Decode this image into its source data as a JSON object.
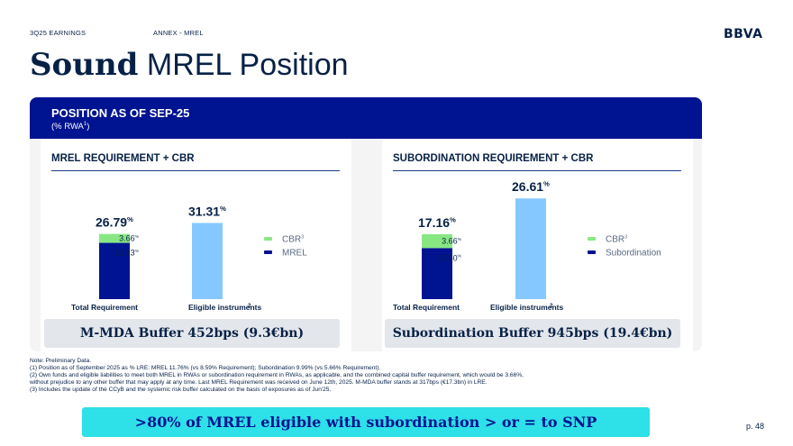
{
  "header": {
    "left": "3Q25 EARNINGS",
    "middle": "ANNEX - MREL",
    "logo": "BBVA"
  },
  "title": {
    "bold": "Sound",
    "rest": "MREL Position"
  },
  "panel": {
    "title": "POSITION AS OF SEP-25",
    "subtitle": "(% RWA",
    "subtitle_sup": "1",
    "subtitle_close": ")"
  },
  "sections": {
    "left": {
      "title": "MREL REQUIREMENT + CBR",
      "buffer": "M-MDA Buffer 452bps (9.3€bn)"
    },
    "right": {
      "title": "SUBORDINATION REQUIREMENT + CBR",
      "buffer": "Subordination Buffer 945bps (19.4€bn)"
    }
  },
  "chart_data": [
    {
      "type": "bar",
      "categories": [
        "Total Requirement",
        "Eligible instruments"
      ],
      "category_sup": [
        "",
        "2"
      ],
      "series": [
        {
          "name": "MREL",
          "values": [
            23.13,
            null
          ]
        },
        {
          "name": "CBR",
          "legend_sup": "3",
          "values": [
            3.66,
            null
          ]
        },
        {
          "name": "",
          "values": [
            null,
            31.31
          ]
        }
      ],
      "segment_labels": {
        "MREL": "23.13",
        "CBR": "3.66"
      },
      "totals": [
        "26.79",
        "31.31"
      ],
      "unit": "%",
      "ylim": [
        0,
        35
      ],
      "colors": {
        "MREL": "#001391",
        "CBR": "#88e783",
        "eligible": "#85c8ff"
      },
      "legend": [
        {
          "label": "CBR",
          "sup": "3",
          "color": "#88e783"
        },
        {
          "label": "MREL",
          "sup": "",
          "color": "#001391"
        }
      ],
      "legend_placement": "right"
    },
    {
      "type": "bar",
      "categories": [
        "Total Requirement",
        "Eligible instruments"
      ],
      "category_sup": [
        "",
        "2"
      ],
      "series": [
        {
          "name": "Subordination",
          "values": [
            13.5,
            null
          ]
        },
        {
          "name": "CBR",
          "legend_sup": "3",
          "values": [
            3.66,
            null
          ]
        },
        {
          "name": "",
          "values": [
            null,
            26.61
          ]
        }
      ],
      "segment_labels": {
        "Subordination": "13.50",
        "CBR": "3.66"
      },
      "totals": [
        "17.16",
        "26.61"
      ],
      "unit": "%",
      "ylim": [
        0,
        30
      ],
      "colors": {
        "Subordination": "#001391",
        "CBR": "#88e783",
        "eligible": "#85c8ff"
      },
      "legend": [
        {
          "label": "CBR",
          "sup": "3",
          "color": "#88e783"
        },
        {
          "label": "Subordination",
          "sup": "",
          "color": "#001391"
        }
      ],
      "legend_placement": "right"
    }
  ],
  "notes": [
    "Note: Preliminary Data.",
    "(1) Position as of September 2025 as % LRE: MREL 11.76% (vs 8.59% Requirement); Subordination 9.99% (vs 5.66% Requirement).",
    "(2) Own funds and eligible liabilities to meet both MREL in RWAs or subordination requirement in RWAs, as applicable, and the combined capital buffer requirement, which would be 3.66%,",
    "without prejudice to any other buffer that may apply at any time. Last MREL Requirement was received on June 12th, 2025. M-MDA buffer stands at 317bps (€17.3bn) in LRE.",
    "(3) Includes the update of the CCyB and the systemic risk buffer calculated on the basis of exposures as of Jun'25."
  ],
  "cta": ">80% of MREL eligible with subordination > or = to SNP",
  "page": "p. 48"
}
